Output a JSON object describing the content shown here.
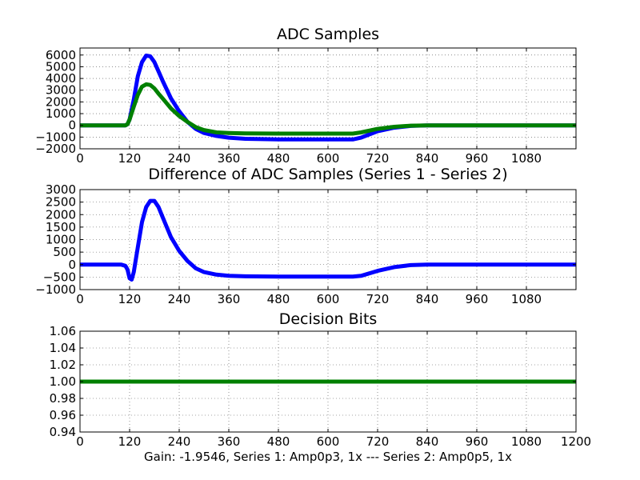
{
  "figure": {
    "caption": "Gain: -1.9546, Series 1: Amp0p3, 1x --- Series 2: Amp0p5, 1x",
    "colors": {
      "series1": "#0000ff",
      "series2": "#008000",
      "grid": "#000000"
    }
  },
  "chart_data": [
    {
      "type": "line",
      "title": "ADC Samples",
      "xlim": [
        0,
        1200
      ],
      "ylim": [
        -2000,
        6600
      ],
      "xticks": [
        "0",
        "120",
        "240",
        "360",
        "480",
        "600",
        "720",
        "840",
        "960",
        "1080"
      ],
      "yticks": [
        "6000",
        "5000",
        "4000",
        "3000",
        "2000",
        "1000",
        "0",
        "−1000",
        "−2000"
      ],
      "ytick_values": [
        6000,
        5000,
        4000,
        3000,
        2000,
        1000,
        0,
        -1000,
        -2000
      ],
      "grid": true,
      "series": [
        {
          "name": "Series 1",
          "color": "#0000ff",
          "x": [
            0,
            100,
            110,
            115,
            120,
            130,
            140,
            150,
            160,
            170,
            180,
            190,
            200,
            220,
            240,
            260,
            280,
            300,
            330,
            360,
            400,
            480,
            600,
            660,
            680,
            720,
            760,
            800,
            840,
            1200
          ],
          "y": [
            0,
            0,
            0,
            100,
            500,
            2200,
            4200,
            5400,
            5950,
            5900,
            5400,
            4600,
            3800,
            2300,
            1200,
            300,
            -300,
            -650,
            -900,
            -1050,
            -1150,
            -1200,
            -1200,
            -1200,
            -1050,
            -500,
            -200,
            -50,
            0,
            0
          ]
        },
        {
          "name": "Series 2",
          "color": "#008000",
          "x": [
            0,
            100,
            110,
            115,
            120,
            130,
            140,
            150,
            160,
            170,
            180,
            190,
            200,
            220,
            240,
            260,
            280,
            300,
            330,
            360,
            400,
            480,
            600,
            660,
            680,
            720,
            760,
            800,
            840,
            1200
          ],
          "y": [
            0,
            0,
            0,
            100,
            500,
            1600,
            2600,
            3300,
            3500,
            3450,
            3150,
            2700,
            2300,
            1450,
            800,
            300,
            -150,
            -400,
            -600,
            -650,
            -680,
            -700,
            -700,
            -700,
            -600,
            -300,
            -120,
            -30,
            0,
            0
          ]
        }
      ]
    },
    {
      "type": "line",
      "title": "Difference of ADC Samples (Series 1 - Series 2)",
      "xlim": [
        0,
        1200
      ],
      "ylim": [
        -1000,
        3000
      ],
      "xticks": [
        "0",
        "120",
        "240",
        "360",
        "480",
        "600",
        "720",
        "840",
        "960",
        "1080"
      ],
      "yticks": [
        "3000",
        "2500",
        "2000",
        "1500",
        "1000",
        "500",
        "0",
        "−500",
        "−1000"
      ],
      "ytick_values": [
        3000,
        2500,
        2000,
        1500,
        1000,
        500,
        0,
        -500,
        -1000
      ],
      "grid": true,
      "series": [
        {
          "name": "Series 1 - Series 2",
          "color": "#0000ff",
          "x": [
            0,
            100,
            110,
            115,
            120,
            125,
            130,
            140,
            150,
            160,
            170,
            180,
            190,
            200,
            220,
            240,
            260,
            280,
            300,
            330,
            360,
            400,
            480,
            600,
            660,
            680,
            720,
            760,
            800,
            840,
            1200
          ],
          "y": [
            0,
            0,
            -50,
            -200,
            -550,
            -600,
            -300,
            700,
            1700,
            2300,
            2550,
            2550,
            2300,
            1900,
            1100,
            550,
            150,
            -150,
            -300,
            -400,
            -450,
            -470,
            -480,
            -480,
            -480,
            -450,
            -250,
            -100,
            -20,
            0,
            0
          ]
        }
      ]
    },
    {
      "type": "line",
      "title": "Decision Bits",
      "xlim": [
        0,
        1200
      ],
      "ylim": [
        0.94,
        1.06
      ],
      "xticks": [
        "0",
        "120",
        "240",
        "360",
        "480",
        "600",
        "720",
        "840",
        "960",
        "1080",
        "1200"
      ],
      "yticks": [
        "1.06",
        "1.04",
        "1.02",
        "1.00",
        "0.98",
        "0.96",
        "0.94"
      ],
      "ytick_values": [
        1.06,
        1.04,
        1.02,
        1.0,
        0.98,
        0.96,
        0.94
      ],
      "grid": true,
      "series": [
        {
          "name": "Decision Bits",
          "color": "#008000",
          "x": [
            0,
            1200
          ],
          "y": [
            1.0,
            1.0
          ]
        }
      ]
    }
  ]
}
